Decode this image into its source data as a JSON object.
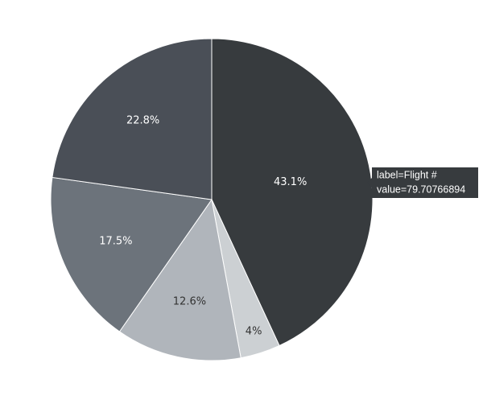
{
  "chart_data": {
    "type": "pie",
    "values": [
      43.1,
      4,
      12.6,
      17.5,
      22.8
    ],
    "value_labels": [
      "43.1%",
      "4%",
      "12.6%",
      "17.5%",
      "22.8%"
    ],
    "colors": [
      "#373b3e",
      "#ccd0d3",
      "#b0b5bb",
      "#6c737b",
      "#4a4f57"
    ],
    "tooltip": {
      "label": "label=Flight #",
      "value": "value=79.70766894"
    }
  }
}
